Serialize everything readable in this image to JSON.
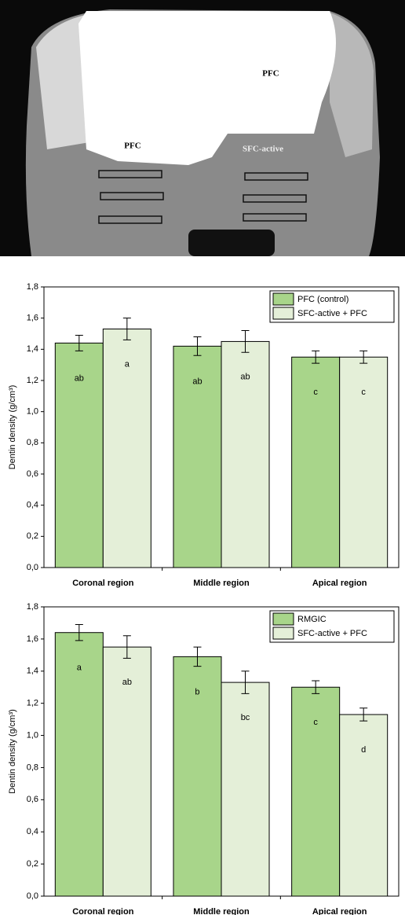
{
  "image": {
    "labels": [
      "PFC",
      "PFC",
      "SFC-active"
    ]
  },
  "chart_data": [
    {
      "type": "bar",
      "y_label": "Dentin density (g/cm³)",
      "categories": [
        "Coronal region",
        "Middle region",
        "Apical region"
      ],
      "series": [
        {
          "name": "PFC (control)",
          "color": "#a8d58a",
          "values": [
            1.44,
            1.42,
            1.35
          ],
          "errors": [
            0.05,
            0.06,
            0.04
          ],
          "letters": [
            "ab",
            "ab",
            "c"
          ]
        },
        {
          "name": "SFC-active + PFC",
          "color": "#e4efd8",
          "values": [
            1.53,
            1.45,
            1.35
          ],
          "errors": [
            0.07,
            0.07,
            0.04
          ],
          "letters": [
            "a",
            "ab",
            "c"
          ]
        }
      ],
      "ylim": [
        0,
        1.8
      ],
      "yticks": [
        {
          "value": 0,
          "label": "0,0"
        },
        {
          "value": 0.2,
          "label": "0,2"
        },
        {
          "value": 0.4,
          "label": "0,4"
        },
        {
          "value": 0.6,
          "label": "0,6"
        },
        {
          "value": 0.8,
          "label": "0,8"
        },
        {
          "value": 1.0,
          "label": "1,0"
        },
        {
          "value": 1.2,
          "label": "1,2"
        },
        {
          "value": 1.4,
          "label": "1,4"
        },
        {
          "value": 1.6,
          "label": "1,6"
        },
        {
          "value": 1.8,
          "label": "1,8"
        }
      ],
      "legend": "top-right"
    },
    {
      "type": "bar",
      "y_label": "Dentin density (g/cm³)",
      "categories": [
        "Coronal region",
        "Middle region",
        "Apical region"
      ],
      "series": [
        {
          "name": "RMGIC",
          "color": "#a8d58a",
          "values": [
            1.64,
            1.49,
            1.3
          ],
          "errors": [
            0.05,
            0.06,
            0.04
          ],
          "letters": [
            "a",
            "b",
            "c"
          ]
        },
        {
          "name": "SFC-active + PFC",
          "color": "#e4efd8",
          "values": [
            1.55,
            1.33,
            1.13
          ],
          "errors": [
            0.07,
            0.07,
            0.04
          ],
          "letters": [
            "ab",
            "bc",
            "d"
          ]
        }
      ],
      "ylim": [
        0,
        1.8
      ],
      "yticks": [
        {
          "value": 0,
          "label": "0,0"
        },
        {
          "value": 0.2,
          "label": "0,2"
        },
        {
          "value": 0.4,
          "label": "0,4"
        },
        {
          "value": 0.6,
          "label": "0,6"
        },
        {
          "value": 0.8,
          "label": "0,8"
        },
        {
          "value": 1.0,
          "label": "1,0"
        },
        {
          "value": 1.2,
          "label": "1,2"
        },
        {
          "value": 1.4,
          "label": "1,4"
        },
        {
          "value": 1.6,
          "label": "1,6"
        },
        {
          "value": 1.8,
          "label": "1,8"
        }
      ],
      "legend": "top-right"
    }
  ]
}
